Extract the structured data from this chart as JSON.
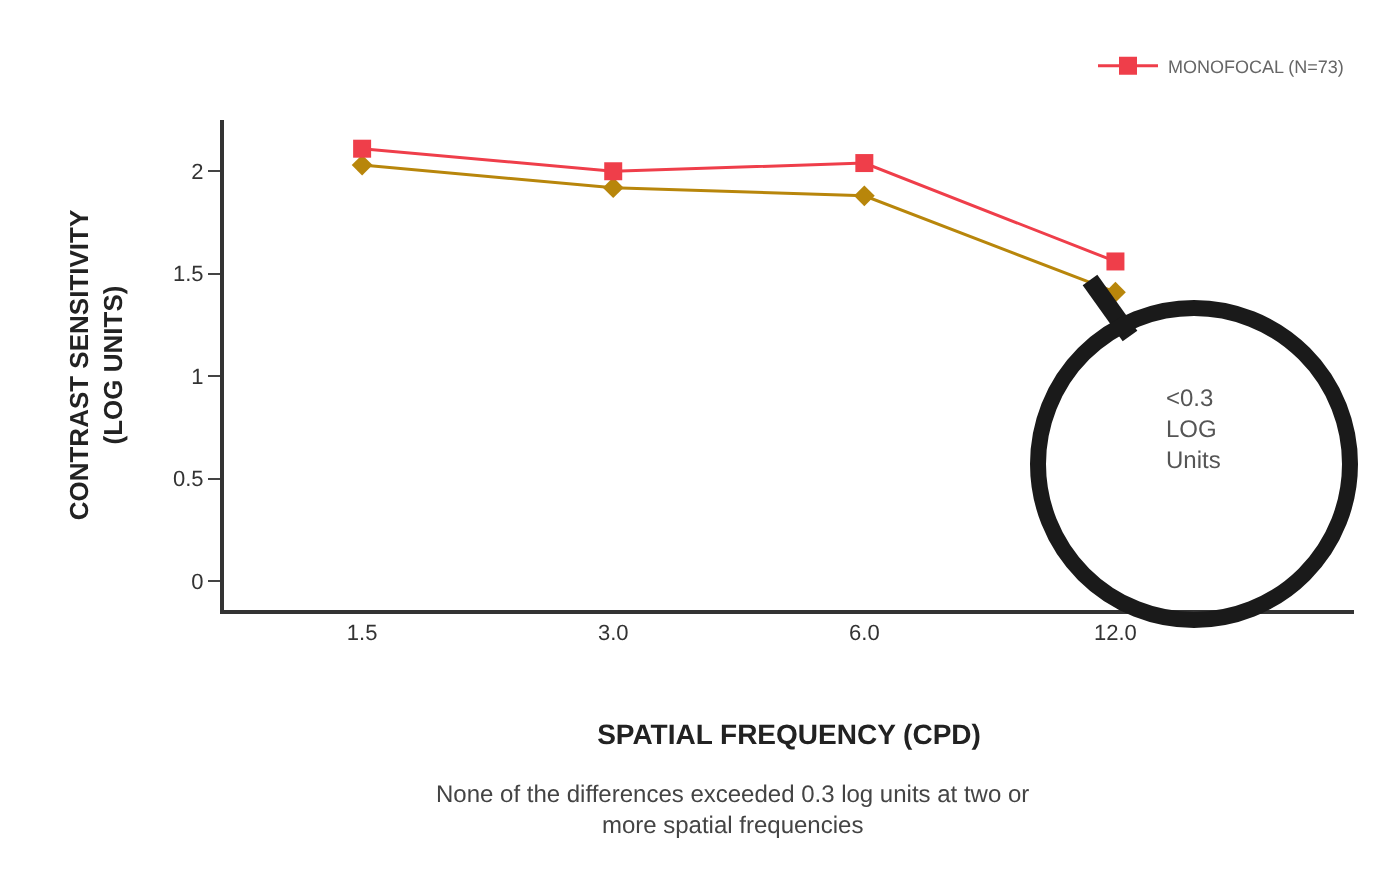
{
  "chart_data": {
    "type": "line",
    "xlabel": "SPATIAL FREQUENCY (CPD)",
    "ylabel": "CONTRAST SENSITIVITY\n(LOG UNITS)",
    "categories": [
      "1.5",
      "3.0",
      "6.0",
      "12.0"
    ],
    "series": [
      {
        "color": "#b8860b",
        "marker": "diamond",
        "values": [
          2.03,
          1.92,
          1.88,
          1.41
        ]
      },
      {
        "name": "MONOFOCAL (N=73)",
        "color": "#ef3e4a",
        "marker": "square",
        "values": [
          2.11,
          2.0,
          2.04,
          1.56
        ]
      }
    ],
    "ylim": [
      -0.14,
      2.25
    ],
    "yticks": [
      0,
      0.5,
      1,
      1.5,
      2
    ],
    "grid": false,
    "legend": "top right",
    "line_style": "solid",
    "annotations": [
      "<0.3\nLOG\nUnits",
      "None of the differences exceeded 0.3 log units at two or\nmore spatial frequencies"
    ]
  }
}
